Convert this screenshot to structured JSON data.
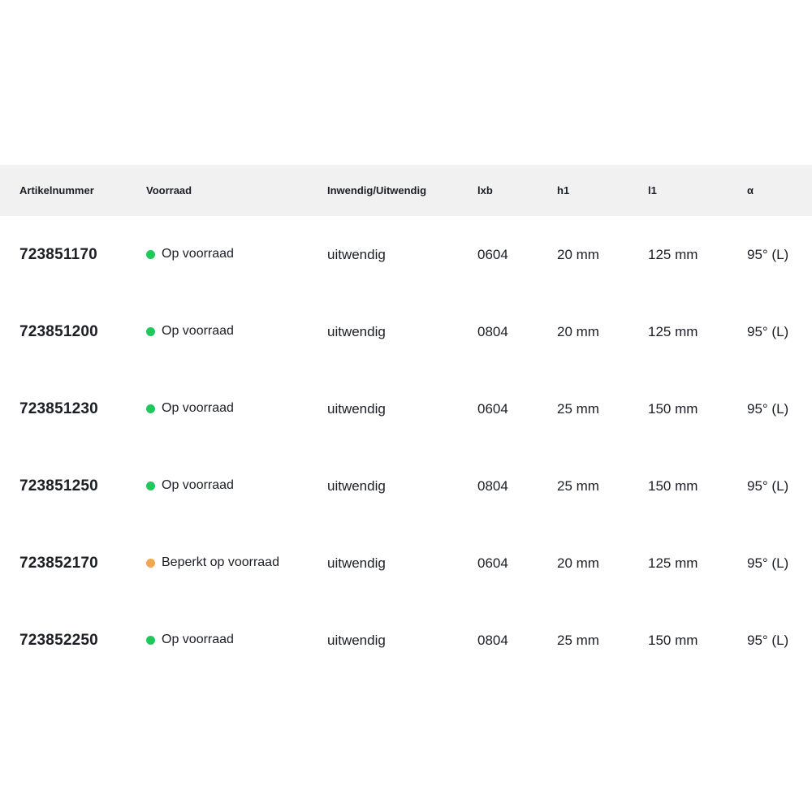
{
  "colors": {
    "header_bg": "#f1f1f1",
    "text": "#1c1e26",
    "status_in_stock_dot": "#1ec85a",
    "status_limited_dot": "#f2a64d"
  },
  "table": {
    "columns": [
      {
        "id": "artikelnummer",
        "label": "Artikelnummer"
      },
      {
        "id": "voorraad",
        "label": "Voorraad"
      },
      {
        "id": "inwendig_uitwendig",
        "label": "Inwendig/Uitwendig"
      },
      {
        "id": "lxb",
        "label": "lxb"
      },
      {
        "id": "h1",
        "label": "h1"
      },
      {
        "id": "l1",
        "label": "l1"
      },
      {
        "id": "alpha",
        "label": "α"
      }
    ],
    "rows": [
      {
        "artikelnummer": "723851170",
        "voorraad": "Op voorraad",
        "status": "in_stock",
        "inwendig_uitwendig": "uitwendig",
        "lxb": "0604",
        "h1": "20 mm",
        "l1": "125 mm",
        "alpha": "95° (L)"
      },
      {
        "artikelnummer": "723851200",
        "voorraad": "Op voorraad",
        "status": "in_stock",
        "inwendig_uitwendig": "uitwendig",
        "lxb": "0804",
        "h1": "20 mm",
        "l1": "125 mm",
        "alpha": "95° (L)"
      },
      {
        "artikelnummer": "723851230",
        "voorraad": "Op voorraad",
        "status": "in_stock",
        "inwendig_uitwendig": "uitwendig",
        "lxb": "0604",
        "h1": "25 mm",
        "l1": "150 mm",
        "alpha": "95° (L)"
      },
      {
        "artikelnummer": "723851250",
        "voorraad": "Op voorraad",
        "status": "in_stock",
        "inwendig_uitwendig": "uitwendig",
        "lxb": "0804",
        "h1": "25 mm",
        "l1": "150 mm",
        "alpha": "95° (L)"
      },
      {
        "artikelnummer": "723852170",
        "voorraad": "Beperkt op voorraad",
        "status": "limited",
        "inwendig_uitwendig": "uitwendig",
        "lxb": "0604",
        "h1": "20 mm",
        "l1": "125 mm",
        "alpha": "95° (L)"
      },
      {
        "artikelnummer": "723852250",
        "voorraad": "Op voorraad",
        "status": "in_stock",
        "inwendig_uitwendig": "uitwendig",
        "lxb": "0804",
        "h1": "25 mm",
        "l1": "150 mm",
        "alpha": "95° (L)"
      }
    ]
  }
}
